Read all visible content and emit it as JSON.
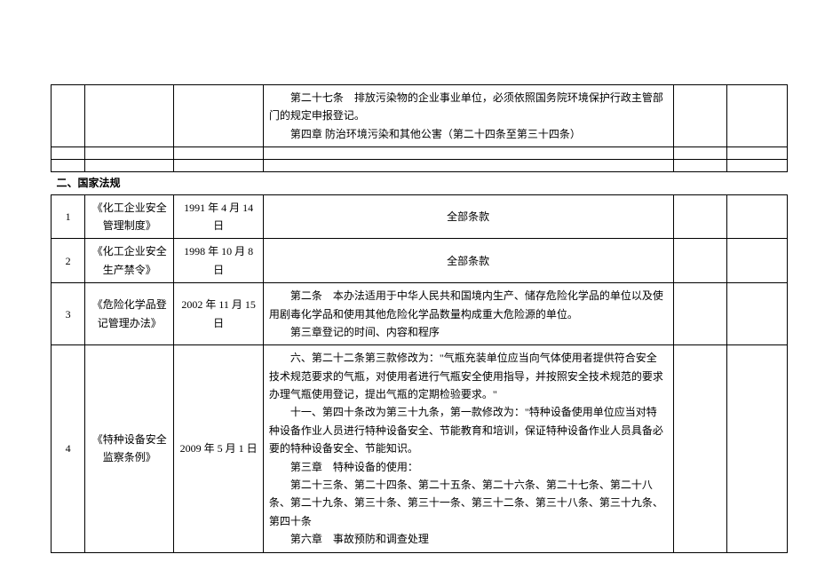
{
  "top_row": {
    "content": {
      "line1": "第二十七条　排放污染物的企业事业单位，必须依照国务院环境保护行政主管部门的规定申报登记。",
      "line2": "第四章 防治环境污染和其他公害（第二十四条至第三十四条）"
    }
  },
  "section_title": "二、国家法规",
  "rows": [
    {
      "num": "1",
      "title": "《化工企业安全管理制度》",
      "date": "1991 年 4 月 14日",
      "content_center": "全部条款"
    },
    {
      "num": "2",
      "title": "《化工企业安全生产禁令》",
      "date": "1998 年 10 月 8日",
      "content_center": "全部条款"
    },
    {
      "num": "3",
      "title": "《危险化学品登记管理办法》",
      "date": "2002 年 11 月 15日",
      "content_lines": [
        "第二条　本办法适用于中华人民共和国境内生产、储存危险化学品的单位以及使用剧毒化学品和使用其他危险化学品数量构成重大危险源的单位。",
        "第三章登记的时间、内容和程序"
      ]
    },
    {
      "num": "4",
      "title": "《特种设备安全监察条例》",
      "date": "2009 年 5 月 1 日",
      "content_lines": [
        "六、第二十二条第三款修改为：\"气瓶充装单位应当向气体使用者提供符合安全技术规范要求的气瓶，对使用者进行气瓶安全使用指导，并按照安全技术规范的要求办理气瓶使用登记，提出气瓶的定期检验要求。\"",
        "十一、第四十条改为第三十九条，第一款修改为：\"特种设备使用单位应当对特种设备作业人员进行特种设备安全、节能教育和培训，保证特种设备作业人员具备必要的特种设备安全、节能知识。",
        "第三章　特种设备的使用：",
        "第二十三条、第二十四条、第二十五条、第二十六条、第二十七条、第二十八条、第二十九条、第三十条、第三十一条、第三十二条、第三十八条、第三十九条、第四十条",
        "第六章　事故预防和调查处理"
      ]
    }
  ]
}
